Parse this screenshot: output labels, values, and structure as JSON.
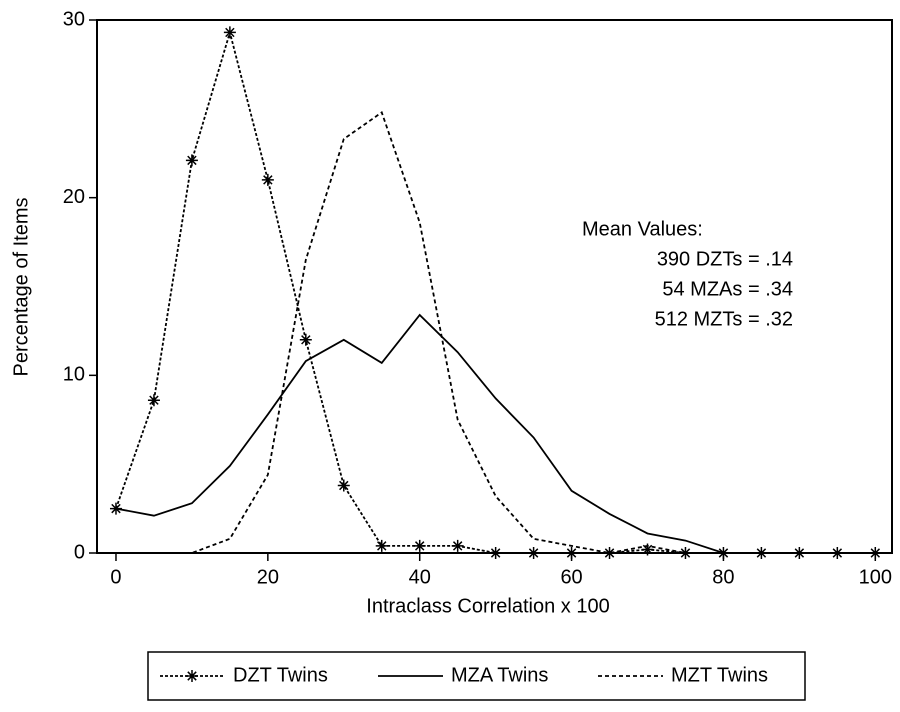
{
  "chart_data": {
    "type": "line",
    "x_label": "Intraclass Correlation x 100",
    "y_label": "Percentage of Items",
    "x": [
      0,
      5,
      10,
      15,
      20,
      25,
      30,
      35,
      40,
      45,
      50,
      55,
      60,
      65,
      70,
      75,
      80,
      85,
      90,
      95,
      100
    ],
    "series": [
      {
        "name": "DZT Twins",
        "color": "#000000",
        "dash": "3,2",
        "marker": "star",
        "values": [
          2.5,
          8.6,
          22.1,
          29.3,
          21.0,
          12.0,
          3.8,
          0.4,
          0.4,
          0.4,
          0,
          0,
          0,
          0,
          0.2,
          0,
          0,
          0,
          0,
          0,
          0
        ]
      },
      {
        "name": "MZA Twins",
        "color": "#000000",
        "dash": "none",
        "marker": "none",
        "values": [
          2.5,
          2.1,
          2.8,
          4.9,
          7.8,
          10.8,
          12.0,
          10.7,
          13.4,
          11.3,
          8.7,
          6.5,
          3.5,
          2.2,
          1.1,
          0.7,
          0,
          0,
          0,
          0,
          0
        ]
      },
      {
        "name": "MZT Twins",
        "color": "#000000",
        "dash": "4,3",
        "marker": "none",
        "values": [
          0,
          0,
          0,
          0.8,
          4.4,
          16.5,
          23.3,
          24.8,
          18.6,
          7.5,
          3.2,
          0.8,
          0.4,
          0,
          0.4,
          0,
          0,
          0,
          0,
          0,
          0
        ]
      }
    ],
    "annotations": [
      "Mean Values:",
      "390 DZTs = .14",
      "54 MZAs = .34",
      "512 MZTs = .32"
    ],
    "xlim": [
      -2.5,
      102.2
    ],
    "xticks": [
      0,
      20,
      40,
      60,
      80,
      100
    ],
    "ylim": [
      0,
      30
    ],
    "yticks": [
      0,
      10,
      20,
      30
    ],
    "legend": "bottom"
  }
}
